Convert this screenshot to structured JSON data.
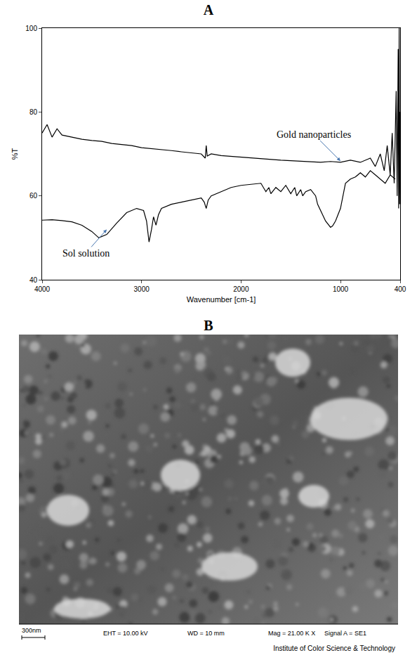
{
  "chart_data": {
    "type": "line",
    "title": "A",
    "x_label": "Wavenumber [cm-1]",
    "y_label": "%T",
    "xlim": [
      4000,
      400
    ],
    "xticks": [
      4000,
      3000,
      2000,
      1000,
      400
    ],
    "ylim": [
      40,
      100
    ],
    "yticks": [
      40,
      60,
      80,
      100
    ],
    "grid": false,
    "series": [
      {
        "color": "#000000",
        "x": [
          4000,
          3950,
          3900,
          3850,
          3800,
          3700,
          3600,
          3500,
          3400,
          3300,
          3200,
          3100,
          3000,
          2900,
          2800,
          2700,
          2600,
          2500,
          2400,
          2360,
          2350,
          2340,
          2300,
          2200,
          2100,
          2000,
          1900,
          1800,
          1700,
          1600,
          1500,
          1400,
          1300,
          1200,
          1100,
          1000,
          900,
          800,
          700,
          650,
          600,
          560,
          530,
          500,
          480,
          460,
          440,
          430,
          420,
          415,
          410,
          405,
          400
        ],
        "values": [
          75,
          77,
          74,
          76,
          74.5,
          74,
          73.5,
          73.2,
          73,
          72.5,
          72.3,
          72,
          71.5,
          71.3,
          71,
          70.8,
          70.5,
          70.3,
          70,
          69,
          72,
          69.5,
          70,
          69.6,
          69.4,
          69.2,
          69,
          68.8,
          68.7,
          68.5,
          68.4,
          68.3,
          68.2,
          68,
          68.2,
          68,
          68.5,
          68,
          69,
          67,
          70,
          66,
          72,
          65,
          75,
          63,
          85,
          60,
          95,
          57,
          100,
          58,
          80
        ]
      },
      {
        "color": "#000000",
        "x": [
          4000,
          3900,
          3800,
          3700,
          3600,
          3500,
          3430,
          3350,
          3250,
          3150,
          3050,
          2980,
          2950,
          2925,
          2900,
          2880,
          2855,
          2830,
          2800,
          2700,
          2600,
          2500,
          2400,
          2370,
          2350,
          2330,
          2300,
          2200,
          2100,
          2000,
          1900,
          1800,
          1750,
          1720,
          1700,
          1650,
          1600,
          1550,
          1500,
          1460,
          1440,
          1400,
          1380,
          1350,
          1300,
          1250,
          1230,
          1200,
          1150,
          1100,
          1080,
          1050,
          1000,
          950,
          900,
          850,
          800,
          750,
          700,
          650,
          600,
          550,
          500,
          450
        ],
        "values": [
          54.2,
          54.3,
          54.1,
          53.8,
          53,
          51.5,
          50,
          50.8,
          53.5,
          56,
          57,
          56.5,
          54,
          49,
          52,
          55,
          53,
          55.5,
          57,
          58,
          58.5,
          59,
          59.5,
          58.5,
          57,
          59,
          60,
          61,
          62,
          62.5,
          62.8,
          63,
          61,
          62,
          60.5,
          62,
          61,
          62.5,
          60.5,
          62,
          60,
          61.5,
          60,
          61,
          61.5,
          60,
          58,
          56.5,
          54,
          52.5,
          52.8,
          54,
          57,
          63,
          64,
          64.5,
          65.5,
          64.5,
          66,
          65,
          64,
          63,
          65,
          64
        ]
      }
    ],
    "annotations": [
      {
        "text": "Gold nanoparticles",
        "x": 1000,
        "y": 68.3
      },
      {
        "text": "Sol solution",
        "x": 3350,
        "y": 52
      }
    ]
  },
  "image_panel": {
    "title": "B",
    "scale_bar": "300nm",
    "info": [
      "EHT = 10.00 kV",
      "WD =  10 mm",
      "Mag =  21.00 K X",
      "Signal A = SE1"
    ],
    "institute": "Institute of Color Science & Technology"
  }
}
